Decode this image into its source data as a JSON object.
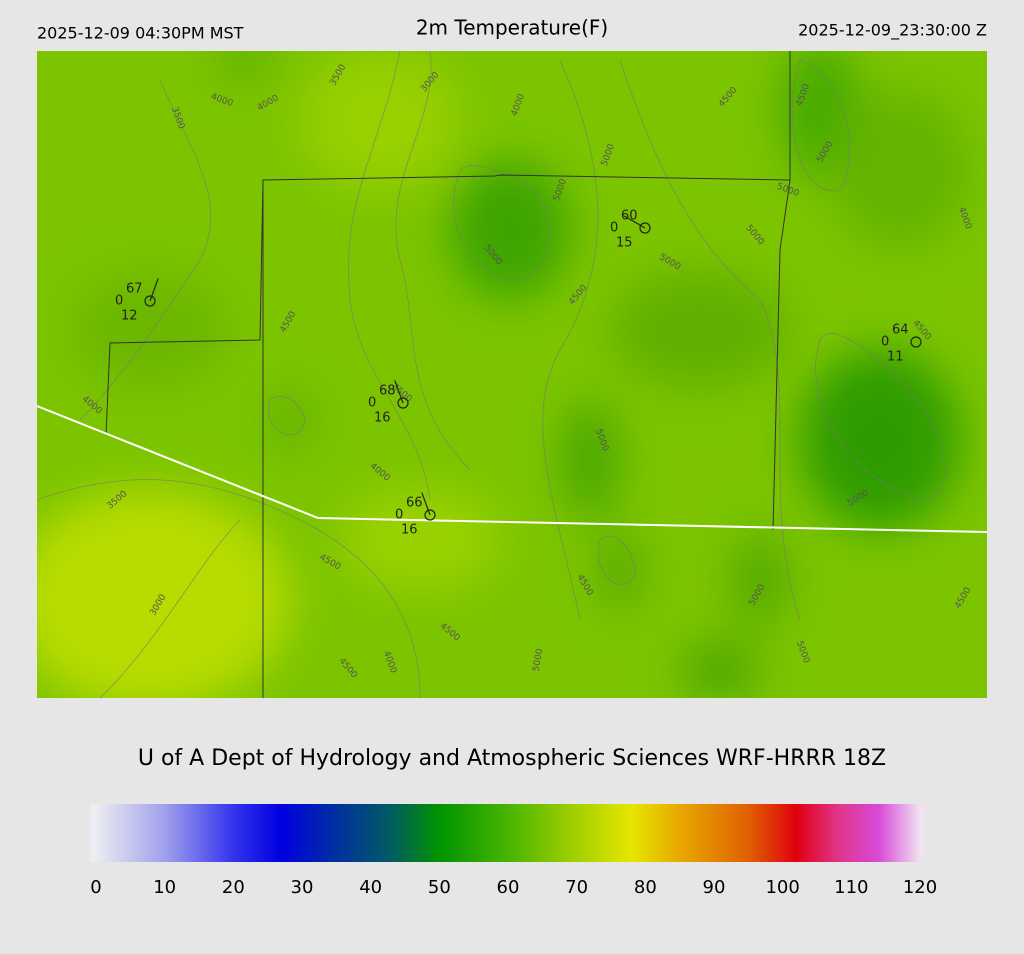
{
  "header": {
    "left": "2025-12-09 04:30PM MST",
    "title": "2m Temperature(F)",
    "right": "2025-12-09_23:30:00 Z"
  },
  "credit": "U of A Dept of Hydrology and Atmospheric Sciences WRF-HRRR 18Z",
  "colorbar": {
    "range": [
      0,
      120
    ],
    "ticks": [
      0,
      10,
      20,
      30,
      40,
      50,
      60,
      70,
      80,
      90,
      100,
      110,
      120
    ],
    "colors": [
      [
        0,
        "#ececf2"
      ],
      [
        10,
        "#a0a0ec"
      ],
      [
        20,
        "#3434ee"
      ],
      [
        27,
        "#0000e0"
      ],
      [
        35,
        "#0030a0"
      ],
      [
        43,
        "#005c60"
      ],
      [
        50,
        "#009400"
      ],
      [
        60,
        "#48b400"
      ],
      [
        70,
        "#a4d000"
      ],
      [
        78,
        "#e6e600"
      ],
      [
        85,
        "#e8a800"
      ],
      [
        95,
        "#e06000"
      ],
      [
        102,
        "#e00010"
      ],
      [
        108,
        "#e03488"
      ],
      [
        114,
        "#d84ad8"
      ],
      [
        120,
        "#f0e2f0"
      ]
    ]
  },
  "contours": [
    "3500",
    "4000",
    "4000",
    "3500",
    "3000",
    "4000",
    "5000",
    "5000",
    "5000",
    "5000",
    "5000",
    "4500",
    "4500",
    "5000",
    "5000",
    "4000",
    "4500",
    "4500",
    "4500",
    "4000",
    "3500",
    "5000",
    "4000",
    "3500",
    "5000",
    "4500",
    "4500",
    "3000",
    "4500",
    "5000",
    "4500",
    "4500",
    "4000",
    "5000",
    "5000"
  ],
  "stations": [
    {
      "temp": 67,
      "wind": 0,
      "dew": 12
    },
    {
      "temp": 60,
      "wind": 0,
      "dew": 15
    },
    {
      "temp": 64,
      "wind": 0,
      "dew": 11
    },
    {
      "temp": 68,
      "wind": 0,
      "dew": 16
    },
    {
      "temp": 66,
      "wind": 0,
      "dew": 16
    }
  ]
}
